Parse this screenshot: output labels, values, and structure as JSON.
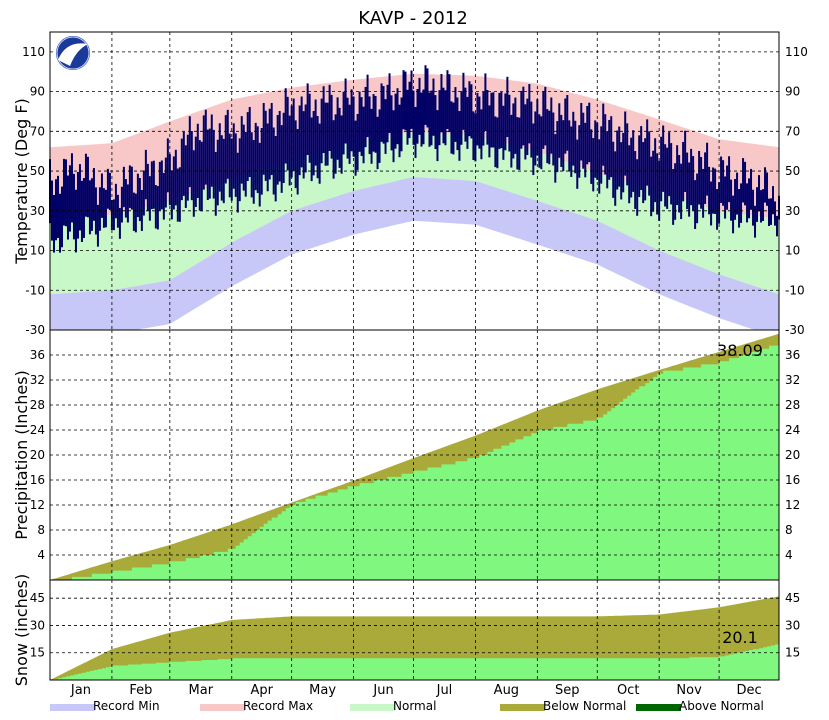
{
  "title": "KAVP - 2012",
  "months": [
    "Jan",
    "Feb",
    "Mar",
    "Apr",
    "May",
    "Jun",
    "Jul",
    "Aug",
    "Sep",
    "Oct",
    "Nov",
    "Dec"
  ],
  "legend": [
    {
      "label": "Record Min",
      "color": "#c8c8f8"
    },
    {
      "label": "Record Max",
      "color": "#f8c8c8"
    },
    {
      "label": "Normal",
      "color": "#c8f8c8"
    },
    {
      "label": "Below Normal",
      "color": "#aaaa3a"
    },
    {
      "label": "Above Normal",
      "color": "#006600"
    }
  ],
  "colors": {
    "actual_temp": "#000066",
    "precip_actual": "#80f880",
    "below_normal": "#aaaa3a",
    "above_normal": "#006600"
  },
  "chart_data": [
    {
      "type": "area",
      "panel": "temperature",
      "ylabel": "Temperature (Deg F)",
      "ylim": [
        -30,
        120
      ],
      "yticks": [
        -30,
        -10,
        10,
        30,
        50,
        70,
        90,
        110
      ],
      "grid": true,
      "x": [
        1,
        32,
        61,
        92,
        122,
        153,
        183,
        214,
        245,
        275,
        306,
        336,
        366
      ],
      "series": [
        {
          "name": "Record Max",
          "values": [
            62,
            64,
            75,
            86,
            92,
            96,
            99,
            98,
            94,
            86,
            76,
            66,
            62
          ]
        },
        {
          "name": "Normal",
          "values": [
            26,
            28,
            35,
            46,
            56,
            65,
            70,
            68,
            60,
            49,
            40,
            30,
            26
          ]
        },
        {
          "name": "Record Min",
          "values": [
            -12,
            -10,
            -5,
            14,
            30,
            40,
            47,
            45,
            35,
            25,
            10,
            -2,
            -12
          ]
        }
      ],
      "actual": {
        "x": [
          1,
          15,
          32,
          46,
          61,
          75,
          92,
          106,
          122,
          137,
          153,
          168,
          183,
          198,
          214,
          229,
          245,
          260,
          275,
          290,
          306,
          321,
          336,
          351,
          366
        ],
        "high": [
          45,
          52,
          40,
          48,
          55,
          72,
          70,
          74,
          82,
          84,
          86,
          88,
          94,
          92,
          88,
          86,
          84,
          78,
          75,
          68,
          64,
          58,
          50,
          46,
          38
        ],
        "low": [
          15,
          18,
          24,
          26,
          30,
          35,
          38,
          40,
          46,
          52,
          56,
          60,
          66,
          64,
          62,
          58,
          56,
          52,
          46,
          38,
          32,
          30,
          28,
          26,
          26
        ]
      }
    },
    {
      "type": "area",
      "panel": "precipitation",
      "ylabel": "Precipitation (Inches)",
      "ylim": [
        0,
        40
      ],
      "yticks": [
        4,
        8,
        12,
        16,
        20,
        24,
        28,
        32,
        36
      ],
      "grid": true,
      "annotation": "38.09",
      "x": [
        1,
        32,
        61,
        92,
        122,
        153,
        183,
        214,
        245,
        275,
        306,
        336,
        366
      ],
      "series": [
        {
          "name": "Normal",
          "values": [
            0,
            3.0,
            5.6,
            8.9,
            12.4,
            15.9,
            19.5,
            23.1,
            27.1,
            30.5,
            33.6,
            36.5,
            39.4
          ]
        },
        {
          "name": "Actual",
          "values": [
            0,
            1.5,
            3.0,
            5.2,
            12.4,
            15.3,
            17.5,
            19.8,
            24.0,
            26.0,
            33.4,
            35.0,
            38.09
          ]
        }
      ]
    },
    {
      "type": "area",
      "panel": "snow",
      "ylabel": "Snow (inches)",
      "ylim": [
        0,
        55
      ],
      "yticks": [
        15,
        30,
        45
      ],
      "grid": true,
      "annotation": "20.1",
      "x": [
        1,
        32,
        61,
        92,
        122,
        153,
        183,
        214,
        245,
        275,
        306,
        336,
        366
      ],
      "series": [
        {
          "name": "Normal",
          "values": [
            0,
            17,
            26,
            33,
            35,
            35,
            35,
            35,
            35,
            35,
            36,
            40,
            46
          ]
        },
        {
          "name": "Actual",
          "values": [
            0,
            8,
            10,
            12,
            12,
            12,
            12,
            12,
            12,
            12,
            12,
            13,
            20.1
          ]
        }
      ]
    }
  ]
}
